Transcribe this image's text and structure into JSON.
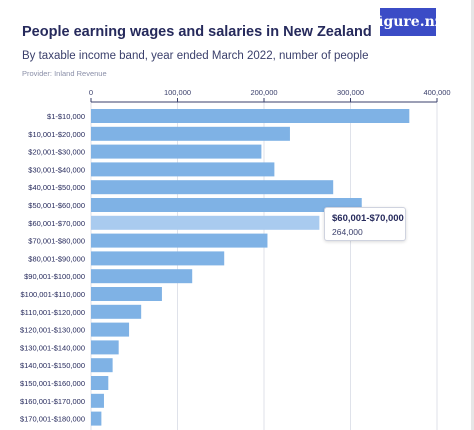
{
  "header": {
    "title": "People earning wages and salaries in New Zealand",
    "subtitle": "By taxable income band, year ended March 2022, number of people",
    "provider": "Provider: Inland Revenue",
    "logo_text": "figure.nz"
  },
  "tooltip": {
    "category": "$60,001-$70,000",
    "value_label": "264,000"
  },
  "colors": {
    "bar": "#7fb2e5",
    "bar_highlight": "#a9cbef",
    "title": "#262a5c",
    "logo_bg": "#3b4cc6"
  },
  "chart_data": {
    "type": "bar",
    "orientation": "horizontal",
    "title": "People earning wages and salaries in New Zealand",
    "subtitle": "By taxable income band, year ended March 2022, number of people",
    "categories": [
      "$1-$10,000",
      "$10,001-$20,000",
      "$20,001-$30,000",
      "$30,001-$40,000",
      "$40,001-$50,000",
      "$50,001-$60,000",
      "$60,001-$70,000",
      "$70,001-$80,000",
      "$80,001-$90,000",
      "$90,001-$100,000",
      "$100,001-$110,000",
      "$110,001-$120,000",
      "$120,001-$130,000",
      "$130,001-$140,000",
      "$140,001-$150,000",
      "$150,001-$160,000",
      "$160,001-$170,000",
      "$170,001-$180,000"
    ],
    "values": [
      368000,
      230000,
      197000,
      212000,
      280000,
      313000,
      264000,
      204000,
      154000,
      117000,
      82000,
      58000,
      44000,
      32000,
      25000,
      20000,
      15000,
      12000
    ],
    "highlighted_index": 6,
    "xlim": [
      0,
      400000
    ],
    "ticks": [
      0,
      100000,
      200000,
      300000,
      400000
    ],
    "tick_labels": [
      "0",
      "100,000",
      "200,000",
      "300,000",
      "400,000"
    ],
    "xlabel": "",
    "ylabel": "",
    "grid": true
  }
}
